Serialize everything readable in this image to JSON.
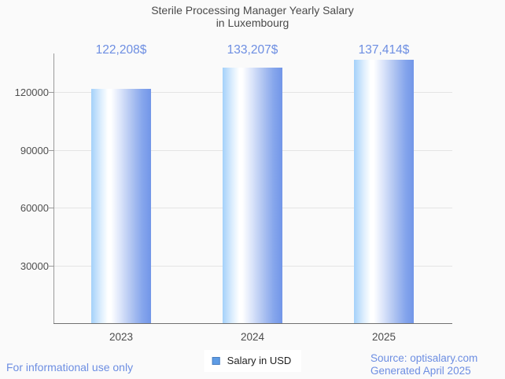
{
  "title": {
    "line1": "Sterile Processing Manager Yearly Salary",
    "line2": "in Luxembourg"
  },
  "chart_data": {
    "type": "bar",
    "title": "Sterile Processing Manager Yearly Salary in Luxembourg",
    "categories": [
      "2023",
      "2024",
      "2025"
    ],
    "values": [
      122208,
      133207,
      137414
    ],
    "value_labels": [
      "122,208$",
      "133,207$",
      "137,414$"
    ],
    "series_name": "Salary in USD",
    "xlabel": "",
    "ylabel": "",
    "yticks": [
      30000,
      60000,
      90000,
      120000
    ],
    "ytick_labels": [
      "30000",
      "60000",
      "90000",
      "120000"
    ],
    "ylim": [
      0,
      140600
    ],
    "grid": true,
    "legend_position": "bottom",
    "bar_gradient": [
      "#a4d1fa",
      "#ffffff",
      "#7296e8"
    ]
  },
  "legend": {
    "label": "Salary in USD",
    "swatch_color": "#5e9ce5"
  },
  "footer": {
    "disclaimer": "For informational use only",
    "source": "Source: optisalary.com",
    "generated": "Generated April 2025"
  },
  "colors": {
    "accent_text": "#6d8ee2",
    "title_text": "#4a4a4a",
    "axis_text": "#4f4f4f",
    "gridline": "#e4e4e4",
    "axis_line": "#9a9a9a",
    "baseline": "#707070",
    "background": "#fafafa",
    "legend_bg": "#ffffff"
  }
}
